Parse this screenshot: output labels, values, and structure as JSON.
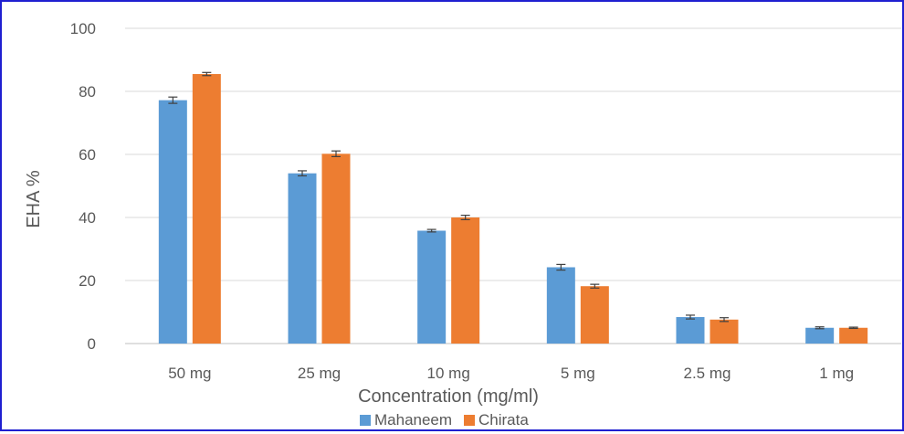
{
  "chart_data": {
    "type": "bar",
    "title": "",
    "xlabel": "Concentration (mg/ml)",
    "ylabel": "EHA %",
    "ylim": [
      0,
      100
    ],
    "yticks": [
      "0",
      "20",
      "40",
      "60",
      "80",
      "100"
    ],
    "grid": true,
    "legend_position": "bottom",
    "categories": [
      "50 mg",
      "25 mg",
      "10 mg",
      "5 mg",
      "2.5 mg",
      "1 mg"
    ],
    "series": [
      {
        "name": "Mahaneem",
        "color": "#5b9bd5",
        "values": [
          77.2,
          54.0,
          35.8,
          24.2,
          8.4,
          5.0
        ],
        "errors": [
          1.0,
          0.8,
          0.4,
          0.9,
          0.6,
          0.3
        ]
      },
      {
        "name": "Chirata",
        "color": "#ed7d31",
        "values": [
          85.5,
          60.2,
          40.0,
          18.2,
          7.6,
          5.0
        ],
        "errors": [
          0.5,
          0.9,
          0.7,
          0.6,
          0.6,
          0.2
        ]
      }
    ]
  }
}
